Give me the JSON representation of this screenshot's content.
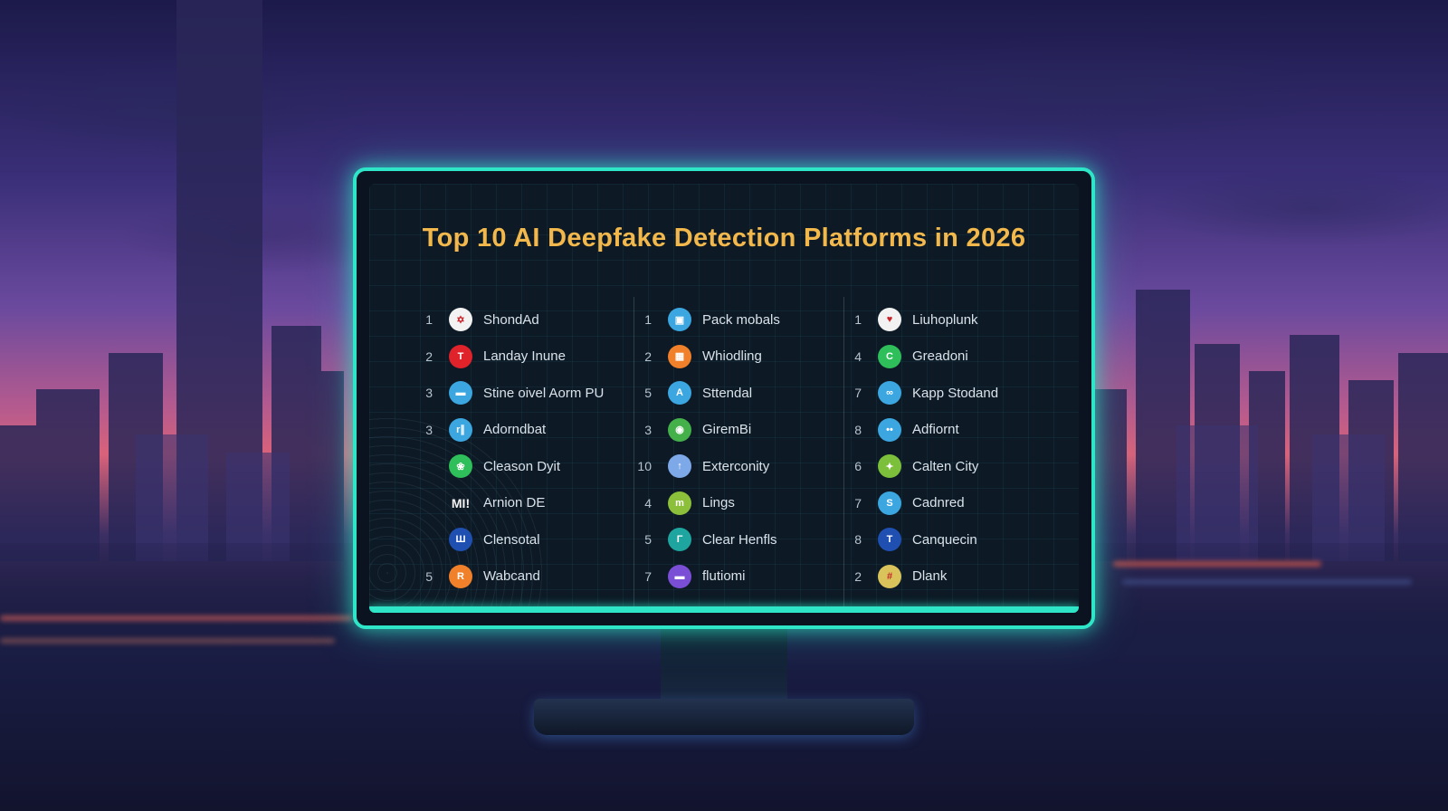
{
  "screen": {
    "title": "Top 10 AI Deepfake Detection Platforms in 2026",
    "accent_color": "#2ee6c7",
    "title_color": "#f2b84b",
    "columns": [
      {
        "items": [
          {
            "rank": "1",
            "name": "ShondAd",
            "icon": "red-white-logo-icon",
            "color": "#f2f2f2",
            "glyph": "✡"
          },
          {
            "rank": "2",
            "name": "Landay Inune",
            "icon": "red-t-logo-icon",
            "color": "#e0222b",
            "glyph": "T"
          },
          {
            "rank": "3",
            "name": "Stine oivel Aorm PU",
            "icon": "blue-card-logo-icon",
            "color": "#3ba6e0",
            "glyph": "▬"
          },
          {
            "rank": "3",
            "name": "Adorndbat",
            "icon": "blue-cr-logo-icon",
            "color": "#3ba6e0",
            "glyph": "r∥"
          },
          {
            "rank": "",
            "name": "Cleason Dyit",
            "icon": "green-logo-icon",
            "color": "#2fbf5a",
            "glyph": "❀"
          },
          {
            "rank": "",
            "name": "Arnion DE",
            "icon": "mi-text-logo-icon",
            "color": "transparent",
            "glyph": "MI!"
          },
          {
            "rank": "",
            "name": "Clensotal",
            "icon": "navy-logo-icon",
            "color": "#1f4fb0",
            "glyph": "Ш"
          },
          {
            "rank": "5",
            "name": "Wabcand",
            "icon": "orange-logo-icon",
            "color": "#f0802a",
            "glyph": "R"
          }
        ]
      },
      {
        "items": [
          {
            "rank": "1",
            "name": "Pack mobals",
            "icon": "blue-bag-logo-icon",
            "color": "#3ba6e0",
            "glyph": "▣"
          },
          {
            "rank": "2",
            "name": "Whiodling",
            "icon": "orange-box-logo-icon",
            "color": "#f0802a",
            "glyph": "▦"
          },
          {
            "rank": "5",
            "name": "Sttendal",
            "icon": "blue-a-logo-icon",
            "color": "#3ba6e0",
            "glyph": "A"
          },
          {
            "rank": "3",
            "name": "GiremBi",
            "icon": "green-car-logo-icon",
            "color": "#44b04a",
            "glyph": "◉"
          },
          {
            "rank": "10",
            "name": "Exterconity",
            "icon": "lightblue-logo-icon",
            "color": "#7ea9e8",
            "glyph": "↑"
          },
          {
            "rank": "4",
            "name": "Lings",
            "icon": "lime-logo-icon",
            "color": "#8cbf3a",
            "glyph": "m"
          },
          {
            "rank": "5",
            "name": "Clear Henfls",
            "icon": "teal-logo-icon",
            "color": "#1fa5a0",
            "glyph": "Γ"
          },
          {
            "rank": "7",
            "name": "flutiomi",
            "icon": "purple-logo-icon",
            "color": "#7a4fd6",
            "glyph": "▬"
          }
        ]
      },
      {
        "items": [
          {
            "rank": "1",
            "name": "Liuhoplunk",
            "icon": "white-red-logo-icon",
            "color": "#f2f2f2",
            "glyph": "♥"
          },
          {
            "rank": "4",
            "name": "Greadoni",
            "icon": "green-c-logo-icon",
            "color": "#2fbf5a",
            "glyph": "C"
          },
          {
            "rank": "7",
            "name": "Kapp Stodand",
            "icon": "blue-infinity-logo-icon",
            "color": "#3ba6e0",
            "glyph": "∞"
          },
          {
            "rank": "8",
            "name": "Adfiornt",
            "icon": "blue-dots-logo-icon",
            "color": "#3ba6e0",
            "glyph": "••"
          },
          {
            "rank": "6",
            "name": "Calten City",
            "icon": "multicolor-logo-icon",
            "color": "#7bbf3a",
            "glyph": "✦"
          },
          {
            "rank": "7",
            "name": "Cadnred",
            "icon": "blue-s-logo-icon",
            "color": "#3ba6e0",
            "glyph": "S"
          },
          {
            "rank": "8",
            "name": "Canquecin",
            "icon": "navy-t-logo-icon",
            "color": "#1f4fb0",
            "glyph": "T"
          },
          {
            "rank": "2",
            "name": "Dlank",
            "icon": "yellow-grid-logo-icon",
            "color": "#d9c35a",
            "glyph": "#"
          }
        ]
      }
    ]
  }
}
